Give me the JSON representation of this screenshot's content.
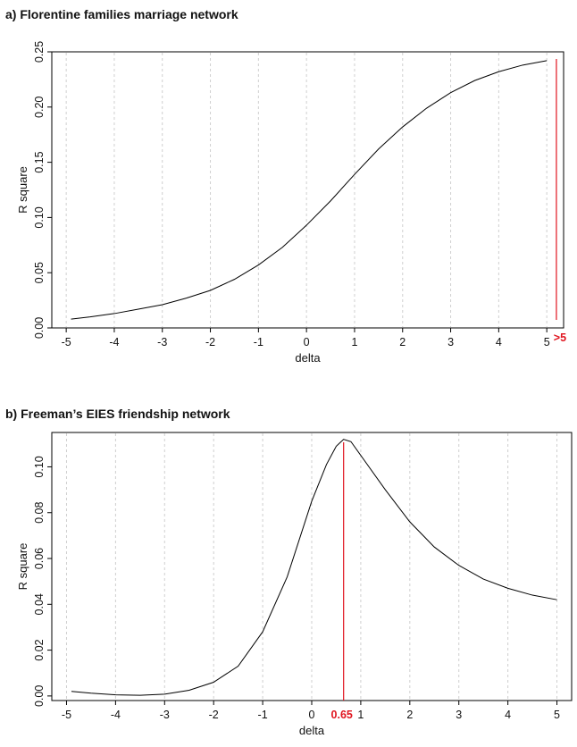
{
  "chart_data": [
    {
      "type": "line",
      "title": "a)   Florentine families marriage network",
      "xlabel": "delta",
      "ylabel": "R square",
      "xlim": [
        -5.3,
        5.35
      ],
      "ylim": [
        0,
        0.25
      ],
      "x_ticks": [
        "-5",
        "-4",
        "-3",
        "-2",
        "-1",
        "0",
        "1",
        "2",
        "3",
        "4",
        "5"
      ],
      "y_ticks": [
        "0.00",
        "0.05",
        "0.10",
        "0.15",
        "0.20",
        "0.25"
      ],
      "grid": "vertical dashed",
      "series": [
        {
          "x": [
            -4.9,
            -4.5,
            -4,
            -3.5,
            -3,
            -2.5,
            -2,
            -1.5,
            -1,
            -0.5,
            0,
            0.5,
            1,
            1.5,
            2,
            2.5,
            3,
            3.5,
            4,
            4.5,
            5
          ],
          "y": [
            0.008,
            0.01,
            0.013,
            0.017,
            0.021,
            0.027,
            0.034,
            0.044,
            0.057,
            0.073,
            0.093,
            0.115,
            0.139,
            0.162,
            0.182,
            0.199,
            0.213,
            0.224,
            0.232,
            0.238,
            0.242
          ],
          "color": "#000000"
        }
      ],
      "marker": {
        "x": 5.2,
        "label": ">5",
        "color": "#e0141e"
      }
    },
    {
      "type": "line",
      "title": "b)   Freeman’s EIES friendship network",
      "xlabel": "delta",
      "ylabel": "R square",
      "xlim": [
        -5.3,
        5.3
      ],
      "ylim": [
        -0.002,
        0.115
      ],
      "x_ticks": [
        "-5",
        "-4",
        "-3",
        "-2",
        "-1",
        "0",
        "1",
        "2",
        "3",
        "4",
        "5"
      ],
      "y_ticks": [
        "0.00",
        "0.02",
        "0.04",
        "0.06",
        "0.08",
        "0.10"
      ],
      "grid": "vertical dashed",
      "series": [
        {
          "x": [
            -4.9,
            -4.5,
            -4,
            -3.5,
            -3,
            -2.5,
            -2,
            -1.5,
            -1,
            -0.5,
            0,
            0.3,
            0.5,
            0.65,
            0.8,
            1,
            1.5,
            2,
            2.5,
            3,
            3.5,
            4,
            4.5,
            5
          ],
          "y": [
            0.002,
            0.0012,
            0.0005,
            0.0003,
            0.0008,
            0.0025,
            0.006,
            0.013,
            0.028,
            0.052,
            0.085,
            0.101,
            0.109,
            0.112,
            0.111,
            0.105,
            0.09,
            0.076,
            0.065,
            0.057,
            0.051,
            0.047,
            0.044,
            0.042
          ],
          "color": "#000000"
        }
      ],
      "marker": {
        "x": 0.65,
        "label": "0.65",
        "color": "#e0141e"
      }
    }
  ]
}
